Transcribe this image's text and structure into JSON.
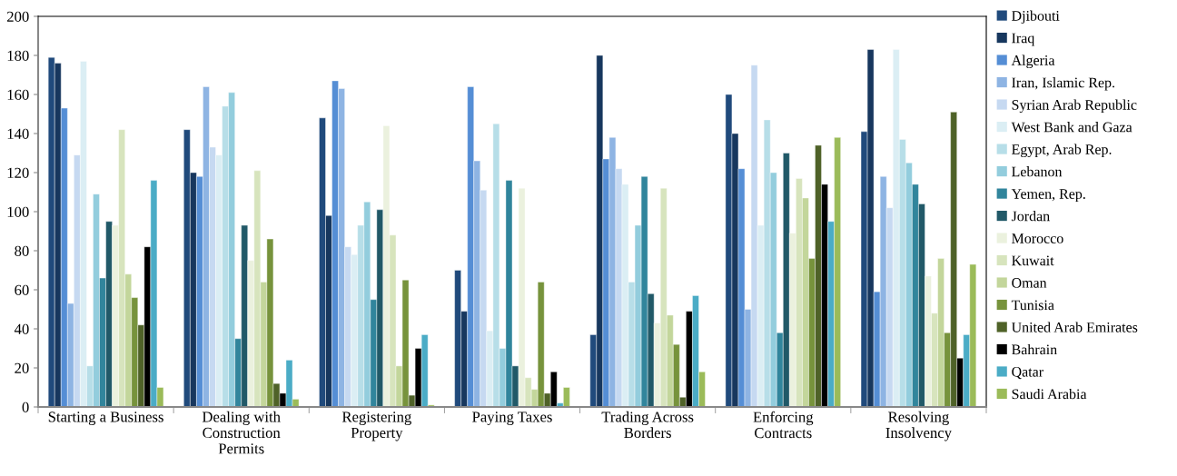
{
  "chart_data": {
    "type": "bar",
    "categories": [
      "Starting a Business",
      "Dealing with\nConstruction\nPermits",
      "Registering\nProperty",
      "Paying Taxes",
      "Trading Across\nBorders",
      "Enforcing\nContracts",
      "Resolving\nInsolvency"
    ],
    "series": [
      {
        "name": "Djibouti",
        "color": "#204a7c",
        "values": [
          179,
          142,
          148,
          70,
          37,
          160,
          141
        ]
      },
      {
        "name": "Iraq",
        "color": "#17375e",
        "values": [
          176,
          120,
          98,
          49,
          180,
          140,
          183
        ]
      },
      {
        "name": "Algeria",
        "color": "#558ed5",
        "values": [
          153,
          118,
          167,
          164,
          127,
          122,
          59
        ]
      },
      {
        "name": "Iran, Islamic Rep.",
        "color": "#8eb4e3",
        "values": [
          53,
          164,
          163,
          126,
          138,
          50,
          118
        ]
      },
      {
        "name": "Syrian Arab Republic",
        "color": "#c6d9f1",
        "values": [
          129,
          133,
          82,
          111,
          122,
          175,
          102
        ]
      },
      {
        "name": "West Bank and Gaza",
        "color": "#dbeef4",
        "values": [
          177,
          129,
          78,
          39,
          114,
          93,
          183
        ]
      },
      {
        "name": "Egypt, Arab Rep.",
        "color": "#b7dee8",
        "values": [
          21,
          154,
          93,
          145,
          64,
          147,
          137
        ]
      },
      {
        "name": "Lebanon",
        "color": "#93cddd",
        "values": [
          109,
          161,
          105,
          30,
          93,
          120,
          125
        ]
      },
      {
        "name": "Yemen, Rep.",
        "color": "#31859c",
        "values": [
          66,
          35,
          55,
          116,
          118,
          38,
          114
        ]
      },
      {
        "name": "Jordan",
        "color": "#215968",
        "values": [
          95,
          93,
          101,
          21,
          58,
          130,
          104
        ]
      },
      {
        "name": "Morocco",
        "color": "#ebf1de",
        "values": [
          93,
          75,
          144,
          112,
          43,
          89,
          67
        ]
      },
      {
        "name": "Kuwait",
        "color": "#d7e4bd",
        "values": [
          142,
          121,
          88,
          15,
          112,
          117,
          48
        ]
      },
      {
        "name": "Oman",
        "color": "#c3d69b",
        "values": [
          68,
          64,
          21,
          9,
          47,
          107,
          76
        ]
      },
      {
        "name": "Tunisia",
        "color": "#77933c",
        "values": [
          56,
          86,
          65,
          64,
          32,
          76,
          38
        ]
      },
      {
        "name": "United Arab Emirates",
        "color": "#4f6228",
        "values": [
          42,
          12,
          6,
          7,
          5,
          134,
          151
        ]
      },
      {
        "name": "Bahrain",
        "color": "#000000",
        "values": [
          82,
          7,
          30,
          18,
          49,
          114,
          25
        ]
      },
      {
        "name": "Qatar",
        "color": "#4bacc6",
        "values": [
          116,
          24,
          37,
          2,
          57,
          95,
          37
        ]
      },
      {
        "name": "Saudi Arabia",
        "color": "#9bbb59",
        "values": [
          10,
          4,
          1,
          10,
          18,
          138,
          73
        ]
      }
    ],
    "ylim": [
      0,
      200
    ],
    "yticks": [
      0,
      20,
      40,
      60,
      80,
      100,
      120,
      140,
      160,
      180,
      200
    ],
    "grid": false,
    "legend": "right"
  }
}
